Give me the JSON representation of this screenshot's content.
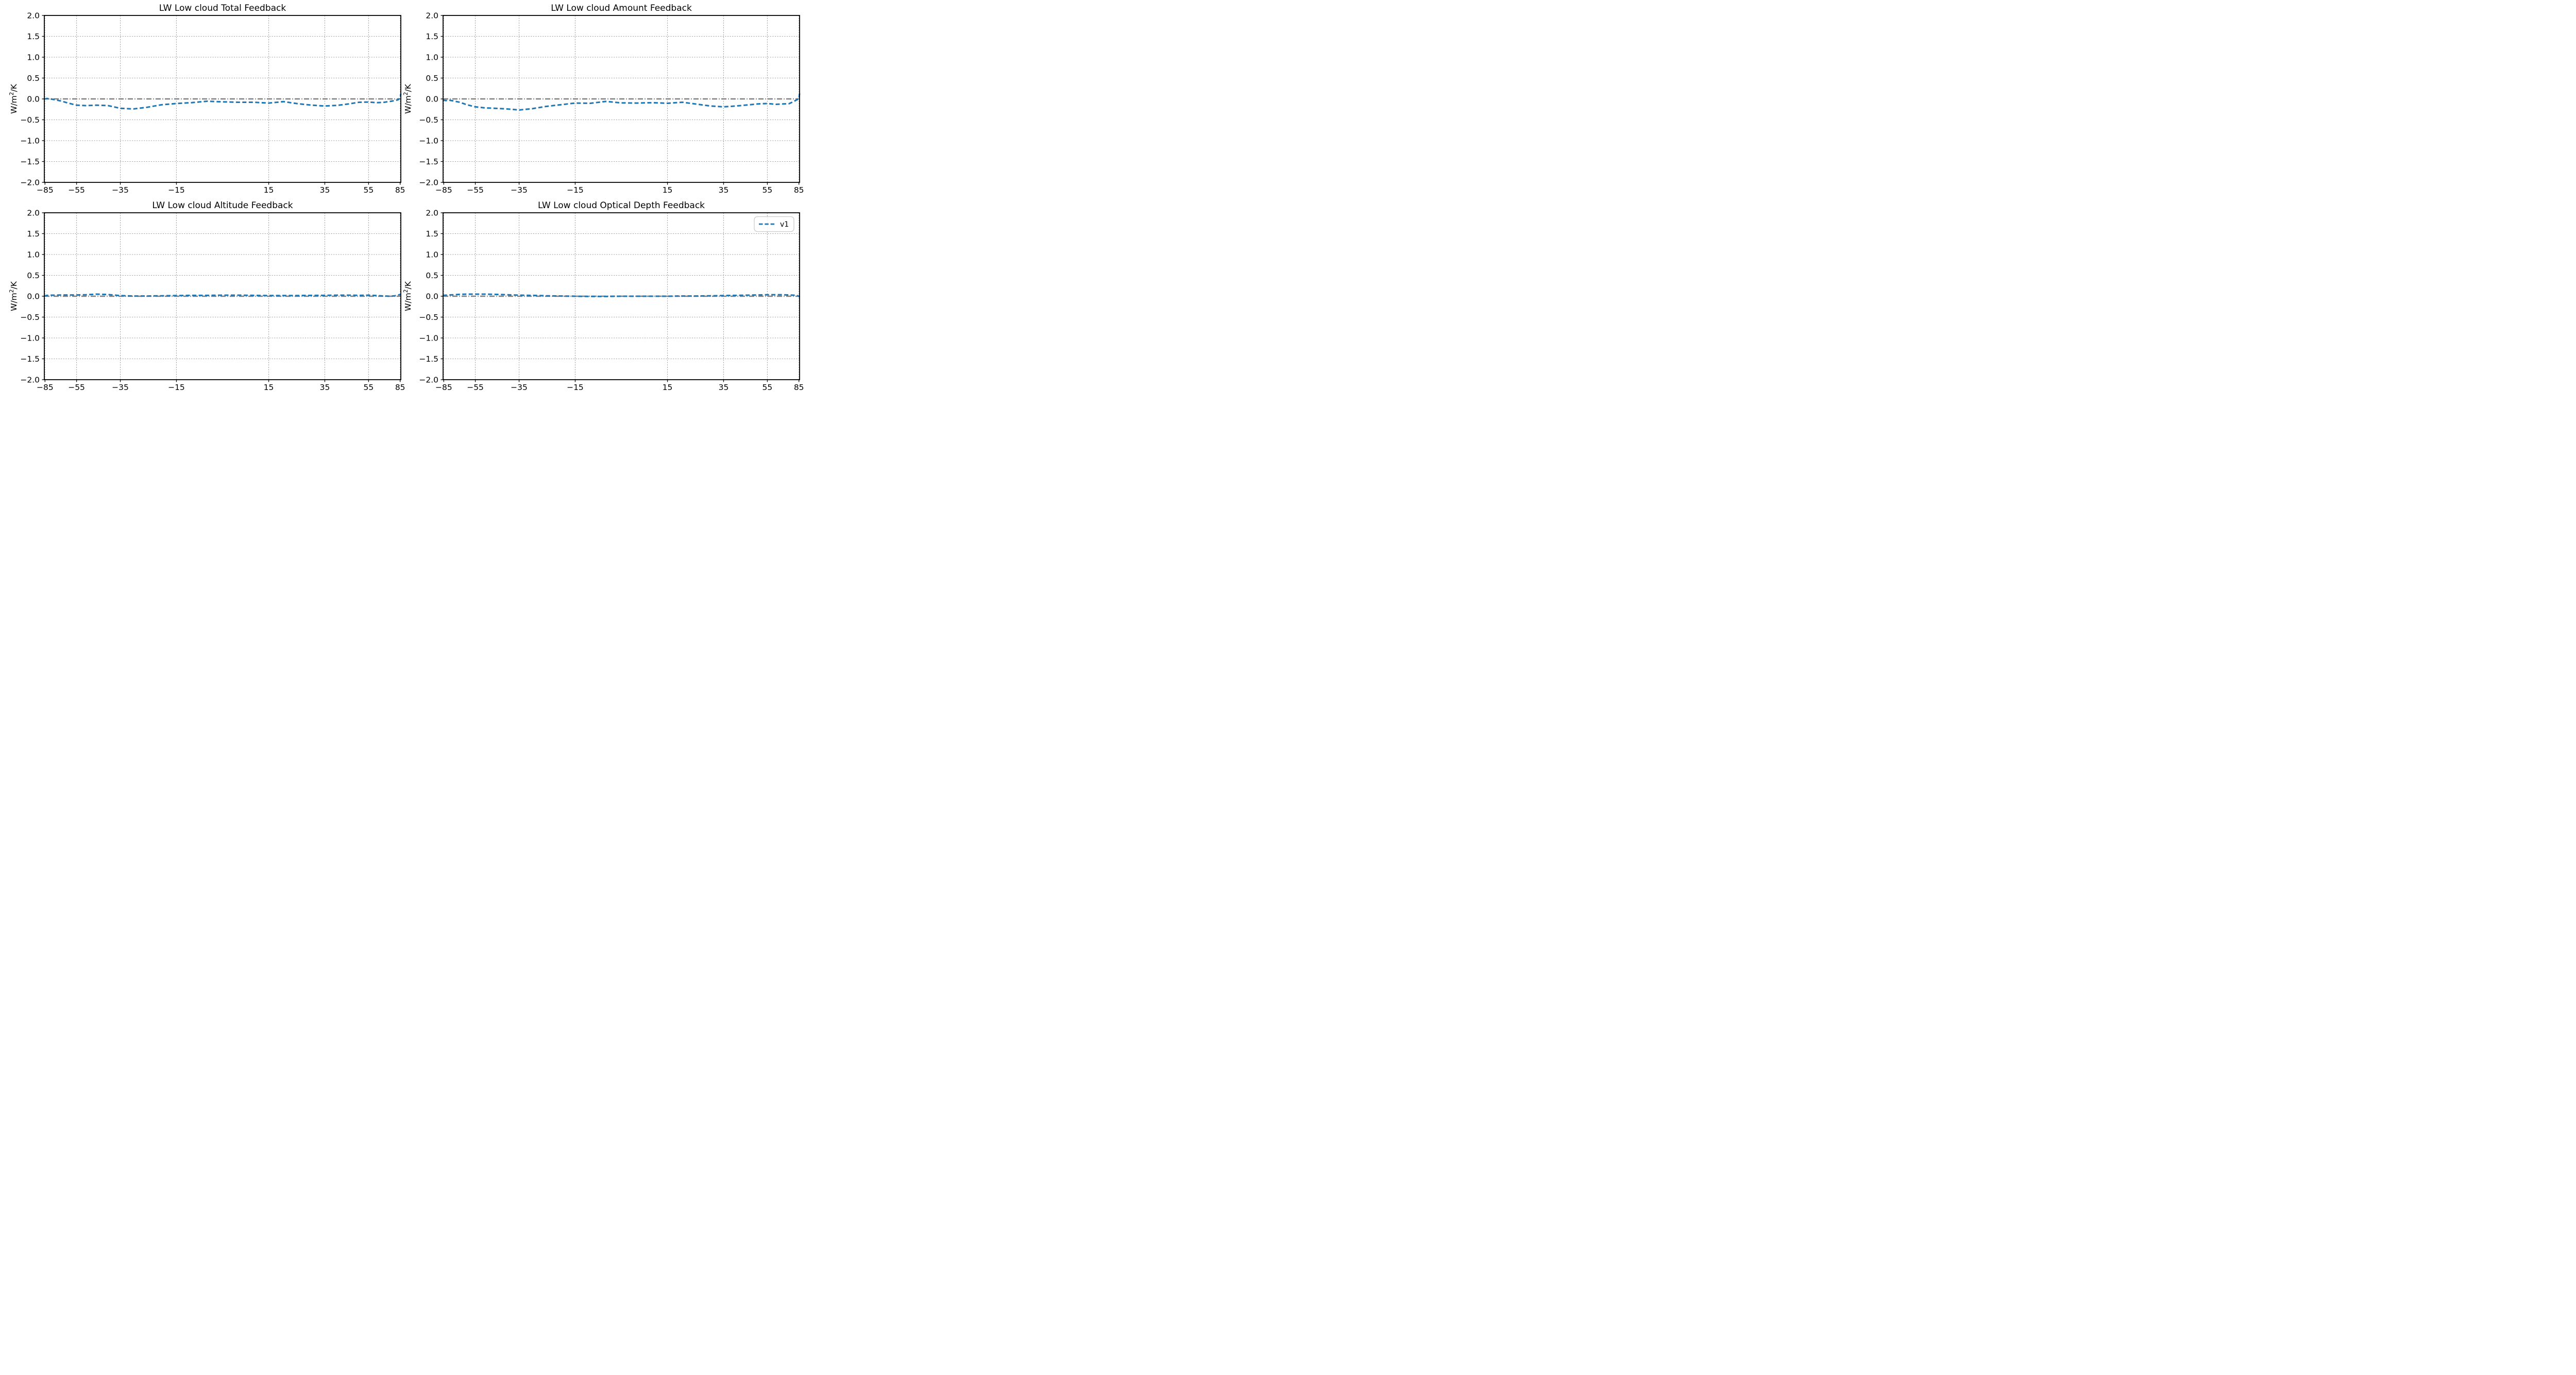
{
  "figure": {
    "background": "#ffffff",
    "rows": 2,
    "cols": 2
  },
  "colors": {
    "series": "#1f77b4",
    "zero_line": "#808080",
    "grid": "#9a9a9a",
    "spine": "#000000",
    "tick": "#000000",
    "text": "#000000",
    "legend_border": "#cccccc",
    "legend_bg": "#ffffff"
  },
  "ylabel_parts": {
    "base": "W/m",
    "sup": "2",
    "rest": "/K"
  },
  "legend": {
    "label": "v1",
    "location": "upper right",
    "panel": "LW Low cloud Optical Depth Feedback"
  },
  "chart_data": [
    {
      "type": "line",
      "title": "LW Low cloud Total Feedback",
      "ylabel": "W/m²/K",
      "x_scale": "sin_latitude",
      "xlim": [
        -90,
        90
      ],
      "ylim": [
        -2.0,
        2.0
      ],
      "xticks": [
        -85,
        -55,
        -35,
        -15,
        15,
        35,
        55,
        85
      ],
      "yticks": [
        -2.0,
        -1.5,
        -1.0,
        -0.5,
        0.0,
        0.5,
        1.0,
        1.5,
        2.0
      ],
      "grid": true,
      "zero_line": true,
      "legend": false,
      "series": [
        {
          "name": "v1",
          "style": "dashed",
          "x": [
            -90,
            -85,
            -80,
            -75,
            -70,
            -65,
            -60,
            -55,
            -50,
            -45,
            -40,
            -35,
            -30,
            -25,
            -20,
            -15,
            -10,
            -5,
            0,
            5,
            10,
            15,
            20,
            25,
            30,
            35,
            40,
            45,
            50,
            55,
            60,
            65,
            70,
            75,
            80,
            85,
            90
          ],
          "y": [
            0.0,
            0.0,
            0.01,
            0.0,
            -0.02,
            -0.05,
            -0.1,
            -0.15,
            -0.16,
            -0.15,
            -0.16,
            -0.225,
            -0.24,
            -0.2,
            -0.14,
            -0.11,
            -0.09,
            -0.055,
            -0.07,
            -0.08,
            -0.08,
            -0.1,
            -0.065,
            -0.115,
            -0.15,
            -0.17,
            -0.155,
            -0.12,
            -0.08,
            -0.075,
            -0.09,
            -0.08,
            -0.06,
            -0.04,
            -0.02,
            0.02,
            0.12
          ]
        }
      ]
    },
    {
      "type": "line",
      "title": "LW Low cloud Amount Feedback",
      "ylabel": "W/m²/K",
      "x_scale": "sin_latitude",
      "xlim": [
        -90,
        90
      ],
      "ylim": [
        -2.0,
        2.0
      ],
      "xticks": [
        -85,
        -55,
        -35,
        -15,
        15,
        35,
        55,
        85
      ],
      "yticks": [
        -2.0,
        -1.5,
        -1.0,
        -0.5,
        0.0,
        0.5,
        1.0,
        1.5,
        2.0
      ],
      "grid": true,
      "zero_line": true,
      "legend": false,
      "series": [
        {
          "name": "v1",
          "style": "dashed",
          "x": [
            -90,
            -85,
            -80,
            -75,
            -70,
            -65,
            -60,
            -55,
            -50,
            -45,
            -40,
            -35,
            -30,
            -25,
            -20,
            -15,
            -10,
            -5,
            0,
            5,
            10,
            15,
            20,
            25,
            30,
            35,
            40,
            45,
            50,
            55,
            60,
            65,
            70,
            75,
            80,
            85,
            90
          ],
          "y": [
            -0.02,
            -0.03,
            -0.04,
            -0.03,
            -0.05,
            -0.08,
            -0.14,
            -0.19,
            -0.215,
            -0.225,
            -0.24,
            -0.265,
            -0.235,
            -0.18,
            -0.14,
            -0.1,
            -0.105,
            -0.06,
            -0.095,
            -0.1,
            -0.09,
            -0.105,
            -0.08,
            -0.125,
            -0.17,
            -0.19,
            -0.17,
            -0.145,
            -0.12,
            -0.11,
            -0.13,
            -0.12,
            -0.115,
            -0.065,
            -0.02,
            0.0,
            0.13
          ]
        }
      ]
    },
    {
      "type": "line",
      "title": "LW Low cloud Altitude Feedback",
      "ylabel": "W/m²/K",
      "x_scale": "sin_latitude",
      "xlim": [
        -90,
        90
      ],
      "ylim": [
        -2.0,
        2.0
      ],
      "xticks": [
        -85,
        -55,
        -35,
        -15,
        15,
        35,
        55,
        85
      ],
      "yticks": [
        -2.0,
        -1.5,
        -1.0,
        -0.5,
        0.0,
        0.5,
        1.0,
        1.5,
        2.0
      ],
      "grid": true,
      "zero_line": true,
      "legend": false,
      "series": [
        {
          "name": "v1",
          "style": "dashed",
          "x": [
            -90,
            -85,
            -80,
            -75,
            -70,
            -65,
            -60,
            -55,
            -50,
            -45,
            -40,
            -35,
            -30,
            -25,
            -20,
            -15,
            -10,
            -5,
            0,
            5,
            10,
            15,
            20,
            25,
            30,
            35,
            40,
            45,
            50,
            55,
            60,
            65,
            70,
            75,
            80,
            85,
            90
          ],
          "y": [
            0.0,
            0.01,
            0.02,
            0.025,
            0.025,
            0.03,
            0.03,
            0.03,
            0.035,
            0.05,
            0.04,
            0.015,
            0.005,
            0.005,
            0.01,
            0.015,
            0.02,
            0.02,
            0.025,
            0.025,
            0.02,
            0.015,
            0.015,
            0.015,
            0.02,
            0.02,
            0.025,
            0.025,
            0.02,
            0.025,
            0.015,
            0.005,
            0.0,
            0.01,
            0.03,
            0.04,
            0.04
          ]
        }
      ]
    },
    {
      "type": "line",
      "title": "LW Low cloud Optical Depth Feedback",
      "ylabel": "W/m²/K",
      "x_scale": "sin_latitude",
      "xlim": [
        -90,
        90
      ],
      "ylim": [
        -2.0,
        2.0
      ],
      "xticks": [
        -85,
        -55,
        -35,
        -15,
        15,
        35,
        55,
        85
      ],
      "yticks": [
        -2.0,
        -1.5,
        -1.0,
        -0.5,
        0.0,
        0.5,
        1.0,
        1.5,
        2.0
      ],
      "grid": true,
      "zero_line": true,
      "legend": true,
      "series": [
        {
          "name": "v1",
          "style": "dashed",
          "x": [
            -90,
            -85,
            -80,
            -75,
            -70,
            -65,
            -60,
            -55,
            -50,
            -45,
            -40,
            -35,
            -30,
            -25,
            -20,
            -15,
            -10,
            -5,
            0,
            5,
            10,
            15,
            20,
            25,
            30,
            35,
            40,
            45,
            50,
            55,
            60,
            65,
            70,
            75,
            80,
            85,
            90
          ],
          "y": [
            0.01,
            0.02,
            0.025,
            0.03,
            0.035,
            0.045,
            0.05,
            0.05,
            0.05,
            0.045,
            0.035,
            0.025,
            0.02,
            0.01,
            0.005,
            0.0,
            -0.005,
            -0.005,
            0.0,
            0.0,
            0.0,
            0.0,
            0.005,
            0.005,
            0.01,
            0.015,
            0.02,
            0.025,
            0.03,
            0.035,
            0.035,
            0.035,
            0.03,
            0.025,
            0.02,
            0.0,
            -0.02
          ]
        }
      ]
    }
  ]
}
